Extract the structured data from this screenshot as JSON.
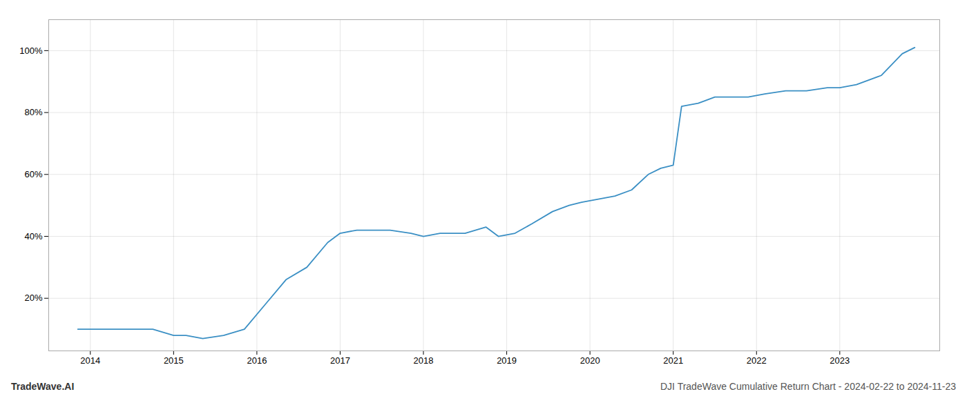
{
  "chart_data": {
    "type": "line",
    "title": "DJI TradeWave Cumulative Return Chart - 2024-02-22 to 2024-11-23",
    "annotations": [
      "TradeWave.AI"
    ],
    "color": "#3a8fc4",
    "x": [
      2013.85,
      2014.0,
      2014.25,
      2014.5,
      2014.75,
      2015.0,
      2015.15,
      2015.35,
      2015.6,
      2015.85,
      2016.1,
      2016.35,
      2016.6,
      2016.85,
      2017.0,
      2017.2,
      2017.4,
      2017.6,
      2017.85,
      2018.0,
      2018.2,
      2018.5,
      2018.75,
      2018.9,
      2019.1,
      2019.3,
      2019.55,
      2019.75,
      2019.9,
      2020.1,
      2020.3,
      2020.5,
      2020.7,
      2020.85,
      2021.0,
      2021.1,
      2021.3,
      2021.5,
      2021.7,
      2021.9,
      2022.1,
      2022.35,
      2022.6,
      2022.85,
      2023.0,
      2023.2,
      2023.5,
      2023.75,
      2023.9
    ],
    "values": [
      10,
      10,
      10,
      10,
      10,
      8,
      8,
      7,
      8,
      10,
      18,
      26,
      30,
      38,
      41,
      42,
      42,
      42,
      41,
      40,
      41,
      41,
      43,
      40,
      41,
      44,
      48,
      50,
      51,
      52,
      53,
      55,
      60,
      62,
      63,
      82,
      83,
      85,
      85,
      85,
      86,
      87,
      87,
      88,
      88,
      89,
      92,
      99,
      101
    ],
    "xlim": [
      2013.5,
      2024.2
    ],
    "ylim": [
      3,
      110
    ],
    "xticks": [
      2014,
      2015,
      2016,
      2017,
      2018,
      2019,
      2020,
      2021,
      2022,
      2023
    ],
    "yticks": [
      {
        "value": 20,
        "label": "20%"
      },
      {
        "value": 40,
        "label": "40%"
      },
      {
        "value": 60,
        "label": "60%"
      },
      {
        "value": 80,
        "label": "80%"
      },
      {
        "value": 100,
        "label": "100%"
      }
    ],
    "grid": true
  }
}
